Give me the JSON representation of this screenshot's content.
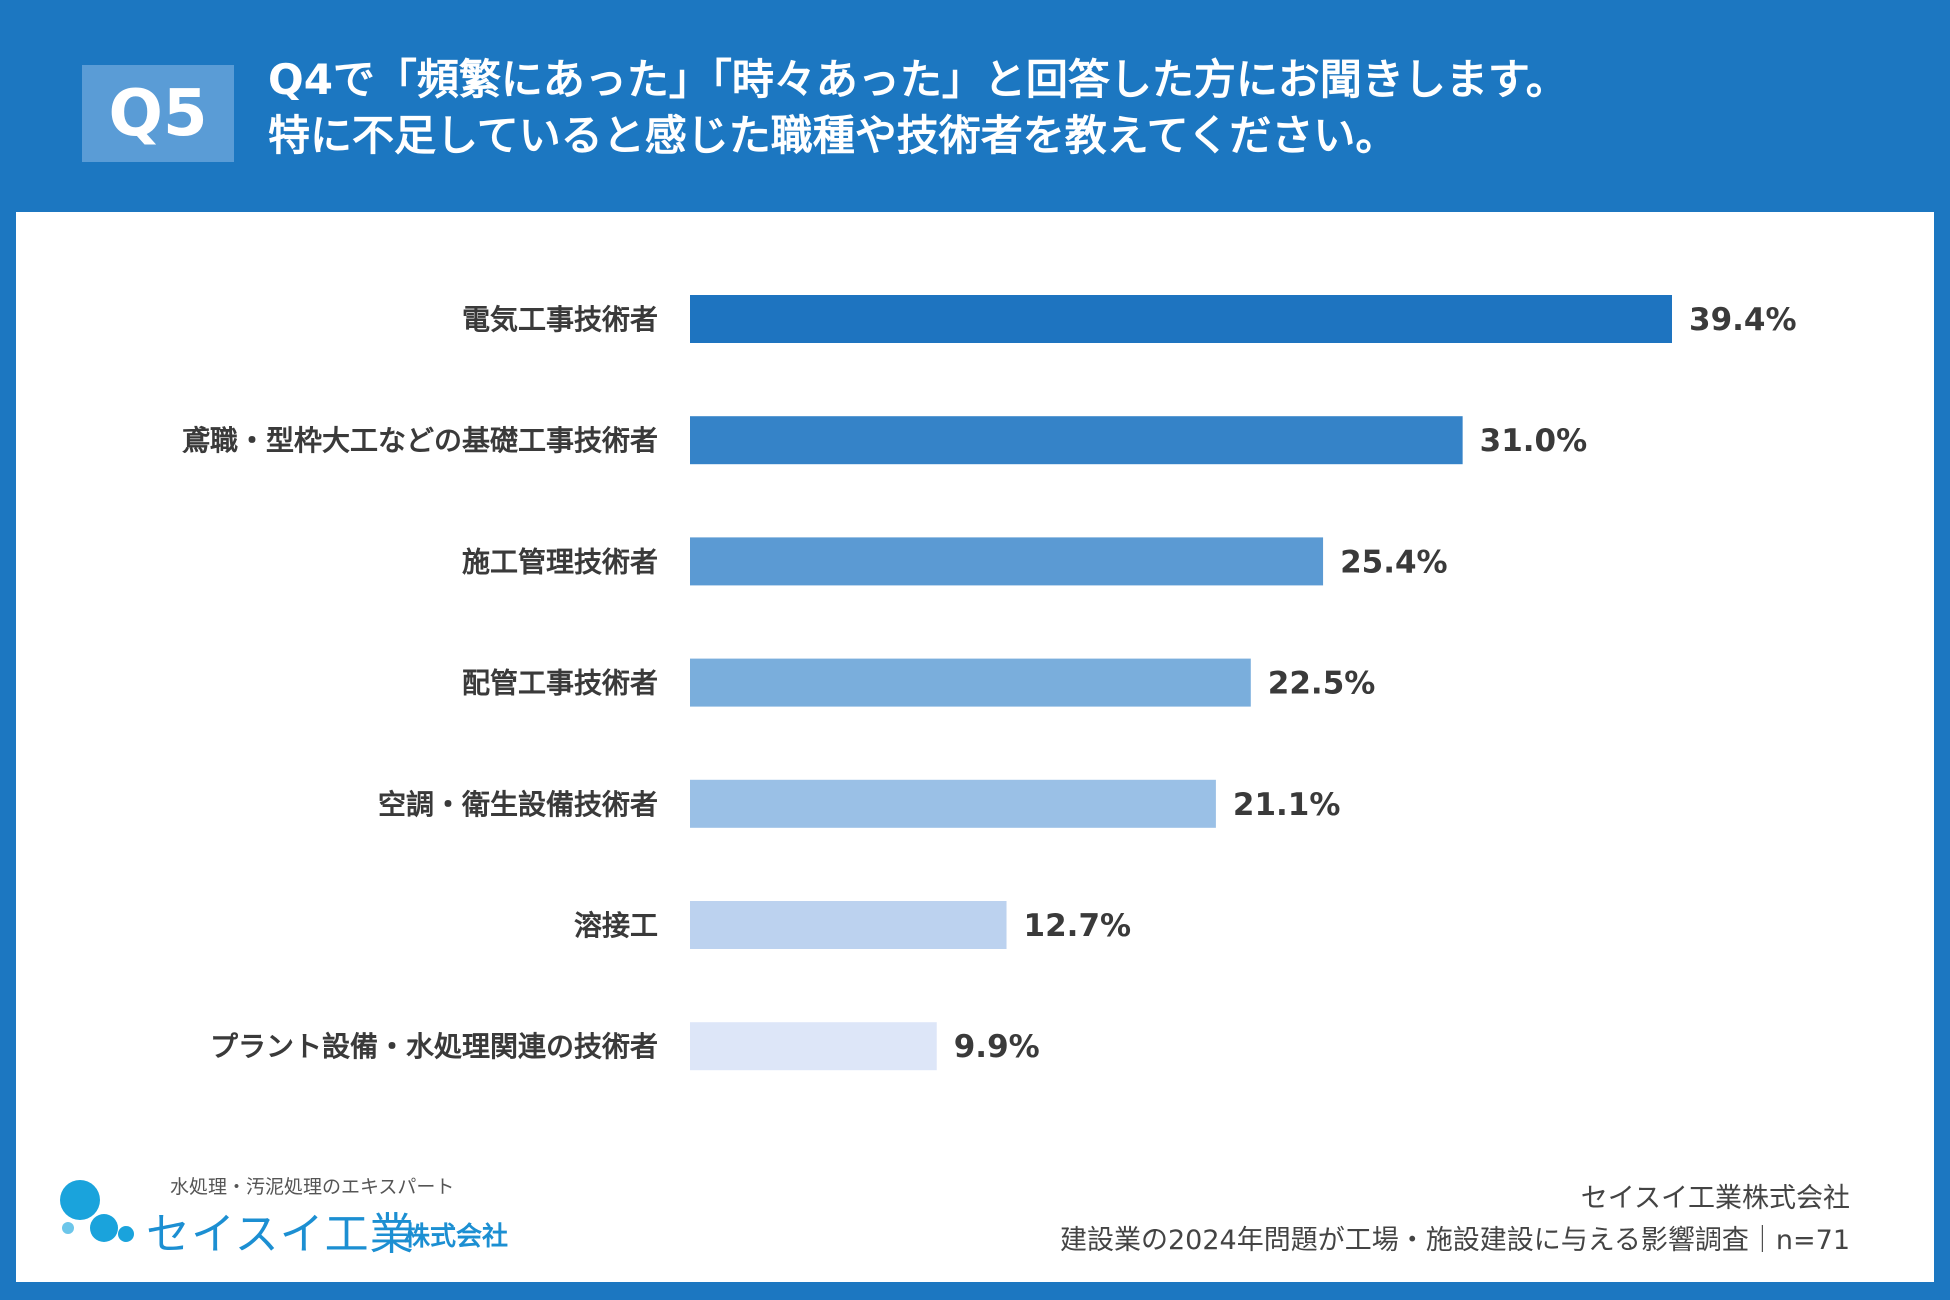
{
  "header": {
    "badge": "Q5",
    "title_line1": "Q4で「頻繁にあった」「時々あった」と回答した方にお聞きします。",
    "title_line2": "特に不足していると感じた職種や技術者を教えてください。"
  },
  "chart_data": {
    "type": "bar",
    "orientation": "horizontal",
    "categories": [
      "電気工事技術者",
      "鳶職・型枠大工などの基礎工事技術者",
      "施工管理技術者",
      "配管工事技術者",
      "空調・衛生設備技術者",
      "溶接工",
      "プラント設備・水処理関連の技術者"
    ],
    "values": [
      39.4,
      31.0,
      25.4,
      22.5,
      21.1,
      12.7,
      9.9
    ],
    "value_labels": [
      "39.4%",
      "31.0%",
      "25.4%",
      "22.5%",
      "21.1%",
      "12.7%",
      "9.9%"
    ],
    "colors": [
      "#1e74c0",
      "#3583c8",
      "#5b9ad3",
      "#7aaedc",
      "#9ac0e6",
      "#bcd2ef",
      "#dde6f8"
    ],
    "xlim": [
      0,
      39.4
    ],
    "grid": false,
    "legend": "none"
  },
  "footer": {
    "company": "セイスイ工業株式会社",
    "survey": "建設業の2024年問題が工場・施設建設に与える影響調査｜n=71"
  },
  "logo": {
    "tagline": "水処理・汚泥処理のエキスパート",
    "name": "セイスイ工業",
    "suffix": "株式会社",
    "mark": "seisui-logo-icon"
  }
}
